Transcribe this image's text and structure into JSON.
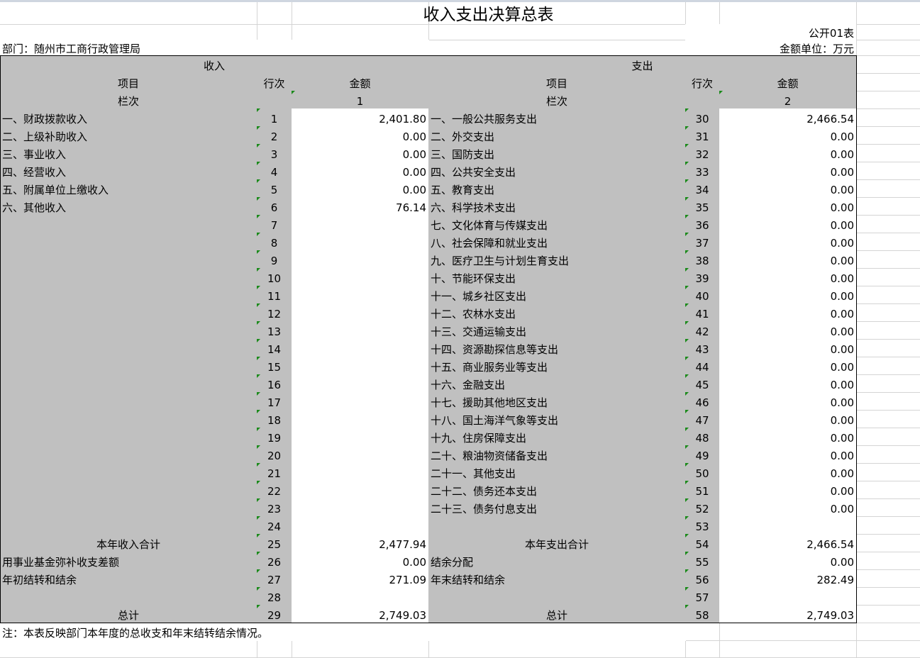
{
  "title": "收入支出决算总表",
  "form_no": "公开01表",
  "department": "部门：随州市工商行政管理局",
  "unit": "金额单位：万元",
  "note": "注：本表反映部门本年度的总收支和年末结转结余情况。",
  "headers": {
    "income": "收入",
    "expense": "支出",
    "item": "项目",
    "line": "行次",
    "amount": "金额",
    "column_no": "栏次",
    "income_col": "1",
    "expense_col": "2"
  },
  "colors": {
    "header_fill": "#c0c0c0",
    "gridline": "#d4d4d4",
    "border": "#000000"
  },
  "income_rows": [
    {
      "label": "一、财政拨款收入",
      "line": "1",
      "amount": "2,401.80"
    },
    {
      "label": "二、上级补助收入",
      "line": "2",
      "amount": "0.00"
    },
    {
      "label": "三、事业收入",
      "line": "3",
      "amount": "0.00"
    },
    {
      "label": "四、经营收入",
      "line": "4",
      "amount": "0.00"
    },
    {
      "label": "五、附属单位上缴收入",
      "line": "5",
      "amount": "0.00"
    },
    {
      "label": "六、其他收入",
      "line": "6",
      "amount": "76.14"
    },
    {
      "label": "",
      "line": "7",
      "amount": ""
    },
    {
      "label": "",
      "line": "8",
      "amount": ""
    },
    {
      "label": "",
      "line": "9",
      "amount": ""
    },
    {
      "label": "",
      "line": "10",
      "amount": ""
    },
    {
      "label": "",
      "line": "11",
      "amount": ""
    },
    {
      "label": "",
      "line": "12",
      "amount": ""
    },
    {
      "label": "",
      "line": "13",
      "amount": ""
    },
    {
      "label": "",
      "line": "14",
      "amount": ""
    },
    {
      "label": "",
      "line": "15",
      "amount": ""
    },
    {
      "label": "",
      "line": "16",
      "amount": ""
    },
    {
      "label": "",
      "line": "17",
      "amount": ""
    },
    {
      "label": "",
      "line": "18",
      "amount": ""
    },
    {
      "label": "",
      "line": "19",
      "amount": ""
    },
    {
      "label": "",
      "line": "20",
      "amount": ""
    },
    {
      "label": "",
      "line": "21",
      "amount": ""
    },
    {
      "label": "",
      "line": "22",
      "amount": ""
    },
    {
      "label": "",
      "line": "23",
      "amount": ""
    },
    {
      "label": "",
      "line": "24",
      "amount": ""
    },
    {
      "label": "本年收入合计",
      "line": "25",
      "amount": "2,477.94",
      "center": true
    },
    {
      "label": "用事业基金弥补收支差额",
      "line": "26",
      "amount": "0.00"
    },
    {
      "label": "年初结转和结余",
      "line": "27",
      "amount": "271.09"
    },
    {
      "label": "",
      "line": "28",
      "amount": ""
    },
    {
      "label": "总计",
      "line": "29",
      "amount": "2,749.03",
      "center": true
    }
  ],
  "expense_rows": [
    {
      "label": "一、一般公共服务支出",
      "line": "30",
      "amount": "2,466.54"
    },
    {
      "label": "二、外交支出",
      "line": "31",
      "amount": "0.00"
    },
    {
      "label": "三、国防支出",
      "line": "32",
      "amount": "0.00"
    },
    {
      "label": "四、公共安全支出",
      "line": "33",
      "amount": "0.00"
    },
    {
      "label": "五、教育支出",
      "line": "34",
      "amount": "0.00"
    },
    {
      "label": "六、科学技术支出",
      "line": "35",
      "amount": "0.00"
    },
    {
      "label": "七、文化体育与传媒支出",
      "line": "36",
      "amount": "0.00"
    },
    {
      "label": "八、社会保障和就业支出",
      "line": "37",
      "amount": "0.00"
    },
    {
      "label": "九、医疗卫生与计划生育支出",
      "line": "38",
      "amount": "0.00"
    },
    {
      "label": "十、节能环保支出",
      "line": "39",
      "amount": "0.00"
    },
    {
      "label": "十一、城乡社区支出",
      "line": "40",
      "amount": "0.00"
    },
    {
      "label": "十二、农林水支出",
      "line": "41",
      "amount": "0.00"
    },
    {
      "label": "十三、交通运输支出",
      "line": "42",
      "amount": "0.00"
    },
    {
      "label": "十四、资源勘探信息等支出",
      "line": "43",
      "amount": "0.00"
    },
    {
      "label": "十五、商业服务业等支出",
      "line": "44",
      "amount": "0.00"
    },
    {
      "label": "十六、金融支出",
      "line": "45",
      "amount": "0.00"
    },
    {
      "label": "十七、援助其他地区支出",
      "line": "46",
      "amount": "0.00"
    },
    {
      "label": "十八、国土海洋气象等支出",
      "line": "47",
      "amount": "0.00"
    },
    {
      "label": "十九、住房保障支出",
      "line": "48",
      "amount": "0.00"
    },
    {
      "label": "二十、粮油物资储备支出",
      "line": "49",
      "amount": "0.00"
    },
    {
      "label": "二十一、其他支出",
      "line": "50",
      "amount": "0.00"
    },
    {
      "label": "二十二、债务还本支出",
      "line": "51",
      "amount": "0.00"
    },
    {
      "label": "二十三、债务付息支出",
      "line": "52",
      "amount": "0.00"
    },
    {
      "label": "",
      "line": "53",
      "amount": ""
    },
    {
      "label": "本年支出合计",
      "line": "54",
      "amount": "2,466.54",
      "center": true
    },
    {
      "label": "结余分配",
      "line": "55",
      "amount": "0.00"
    },
    {
      "label": "年末结转和结余",
      "line": "56",
      "amount": "282.49"
    },
    {
      "label": "",
      "line": "57",
      "amount": ""
    },
    {
      "label": "总计",
      "line": "58",
      "amount": "2,749.03",
      "center": true
    }
  ]
}
